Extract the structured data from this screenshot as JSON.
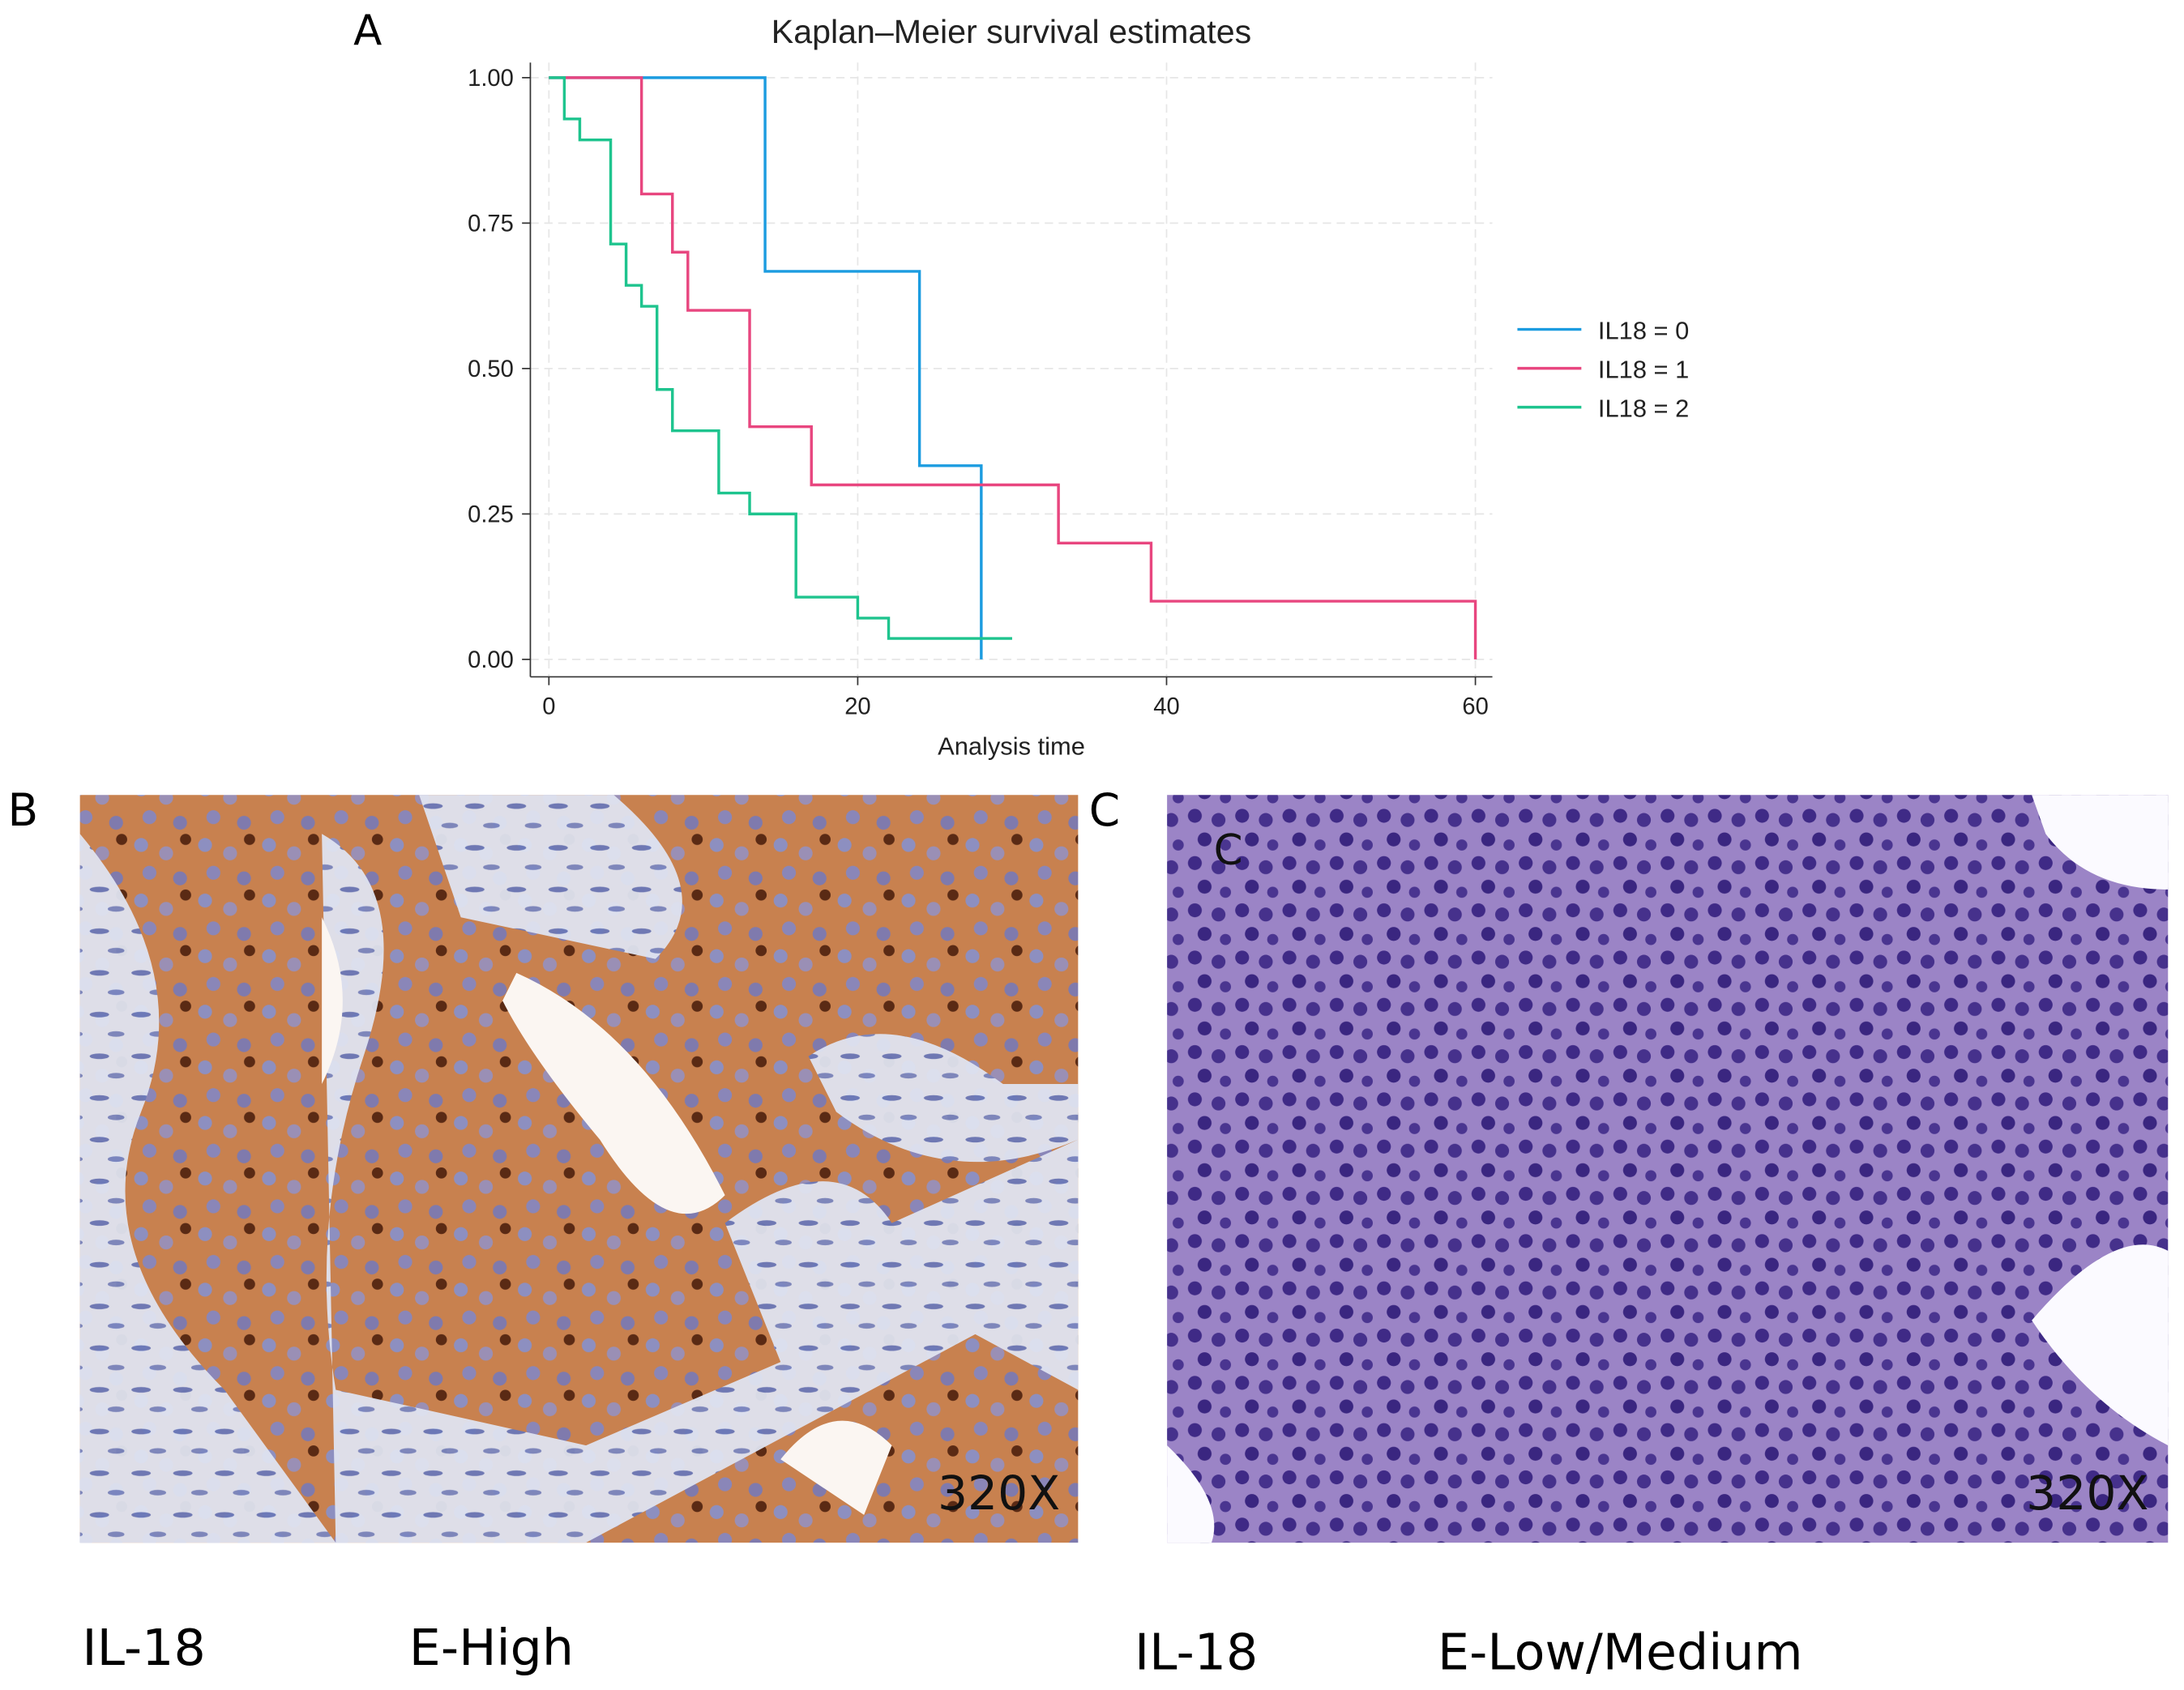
{
  "panels": {
    "a": "A",
    "b": "B",
    "c": "C"
  },
  "chart_data": {
    "type": "line",
    "drawstyle": "steps-post",
    "title": "Kaplan–Meier survival estimates",
    "xlabel": "Analysis time",
    "xlim": [
      -1.2,
      61.1
    ],
    "ylim": [
      -0.03,
      1.026
    ],
    "xticks": [
      0,
      20,
      40,
      60
    ],
    "yticks": [
      {
        "value": 0,
        "label": "0.00"
      },
      {
        "value": 0.25,
        "label": "0.25"
      },
      {
        "value": 0.5,
        "label": "0.50"
      },
      {
        "value": 0.75,
        "label": "0.75"
      },
      {
        "value": 1,
        "label": "1.00"
      }
    ],
    "grid": true,
    "legend": "right",
    "series": [
      {
        "name": "IL18 = 0",
        "color": "#1c9ce0",
        "x": [
          0,
          14,
          24,
          28
        ],
        "values": [
          1,
          0.667,
          0.333,
          0
        ]
      },
      {
        "name": "IL18 = 1",
        "color": "#e8467f",
        "x": [
          0,
          6,
          8,
          9,
          13,
          17,
          33,
          39,
          60
        ],
        "values": [
          1,
          0.8,
          0.7,
          0.6,
          0.4,
          0.3,
          0.2,
          0.1,
          0
        ]
      },
      {
        "name": "IL18 = 2",
        "color": "#1ec48e",
        "x": [
          0,
          1,
          2,
          4,
          5,
          6,
          7,
          8,
          11,
          13,
          16,
          20,
          22,
          30
        ],
        "values": [
          1,
          0.929,
          0.893,
          0.714,
          0.643,
          0.607,
          0.464,
          0.393,
          0.286,
          0.25,
          0.107,
          0.071,
          0.036,
          0.036
        ]
      }
    ]
  },
  "images": [
    {
      "magnification": "320X",
      "marker": "IL-18",
      "level": "E-High"
    },
    {
      "inset_label": "C",
      "magnification": "320X",
      "marker": "IL-18",
      "level": "E-Low/Medium"
    }
  ]
}
